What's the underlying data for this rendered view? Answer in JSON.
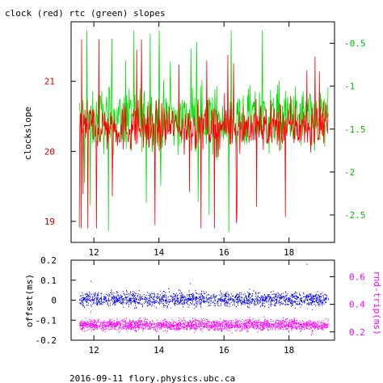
{
  "title": "clock (red) rtc (green) slopes",
  "footer": "2016-09-11 flory.physics.ubc.ca",
  "colors": {
    "red": "#ff0000",
    "green": "#00e000",
    "blue": "#0000ff",
    "magenta": "#ff00ff",
    "left_axis_red": "#d00000",
    "right_axis_green": "#00c000",
    "frame": "#000000"
  },
  "chart_data": [
    {
      "type": "line",
      "title": "clock (red) rtc (green) slopes",
      "xlabel": "",
      "ylabel": "clockslope",
      "xlim": [
        11.3,
        19.4
      ],
      "xticks": [
        12,
        14,
        16,
        18
      ],
      "xtick_labels": [
        "12",
        "14",
        "16",
        "18"
      ],
      "ylim": [
        18.7,
        21.85
      ],
      "yticks": [
        19,
        20,
        21
      ],
      "ytick_labels": [
        "19",
        "20",
        "21"
      ],
      "y2lim": [
        -2.82,
        -0.25
      ],
      "y2ticks": [
        -0.5,
        -1,
        -1.5,
        -2,
        -2.5
      ],
      "y2tick_labels": [
        "-0.5",
        "-1",
        "-1.5",
        "-2",
        "-2.5"
      ],
      "grid": false,
      "series": [
        {
          "name": "clock (red)",
          "axis": "left",
          "color": "#ff0000",
          "mean": 20.35,
          "spread": 0.25,
          "min": 18.9,
          "max": 21.6,
          "x_range": [
            11.55,
            19.2
          ],
          "n": 520
        },
        {
          "name": "rtc (green)",
          "axis": "right",
          "color": "#00e000",
          "mean": -1.38,
          "spread": 0.22,
          "min": -2.7,
          "max": -0.35,
          "x_range": [
            11.55,
            19.2
          ],
          "n": 520
        }
      ]
    },
    {
      "type": "scatter",
      "title": "",
      "xlabel": "",
      "ylabel": "offset(ms)",
      "y2label": "rnd-trip(ms)",
      "xlim": [
        11.3,
        19.4
      ],
      "xticks": [
        12,
        14,
        16,
        18
      ],
      "xtick_labels": [
        "12",
        "14",
        "16",
        "18"
      ],
      "ylim": [
        -0.2,
        0.2
      ],
      "yticks": [
        0.2,
        0.1,
        0,
        -0.1,
        -0.2
      ],
      "ytick_labels": [
        "0.2",
        "0.1",
        "0",
        "-0.1",
        "-0.2"
      ],
      "y2lim": [
        0.14,
        0.72
      ],
      "y2ticks": [
        0.6,
        0.4,
        0.2
      ],
      "y2tick_labels": [
        "0.6",
        "0.4",
        "0.2"
      ],
      "grid": false,
      "series": [
        {
          "name": "offset",
          "axis": "left",
          "color": "#0000ff",
          "mean": 0.005,
          "spread": 0.025,
          "x_range": [
            11.55,
            19.2
          ],
          "n": 2600
        },
        {
          "name": "round trip",
          "axis": "right",
          "color": "#ff00ff",
          "mean": 0.25,
          "spread": 0.028,
          "x_range": [
            11.55,
            19.2
          ],
          "n": 2600
        }
      ]
    }
  ]
}
